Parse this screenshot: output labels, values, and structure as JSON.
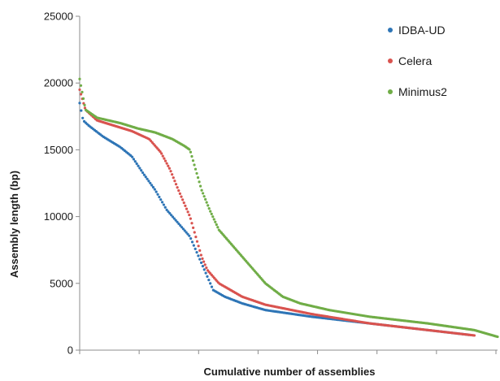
{
  "chart_data": {
    "type": "scatter",
    "title": "",
    "xlabel": "Cumulative number of assemblies",
    "ylabel": "Assembly length (bp)",
    "ylim": [
      0,
      25000
    ],
    "xlim": [
      0,
      360
    ],
    "yticks": [
      "0",
      "5000",
      "10000",
      "15000",
      "20000",
      "25000"
    ],
    "xticks_labeled": false,
    "grid": false,
    "legend_position": "top-right",
    "series": [
      {
        "name": "IDBA-UD",
        "color": "#2e75b6",
        "count": 260,
        "profile": [
          [
            0,
            18500
          ],
          [
            3,
            17200
          ],
          [
            8,
            16800
          ],
          [
            20,
            16000
          ],
          [
            35,
            15200
          ],
          [
            45,
            14500
          ],
          [
            55,
            13200
          ],
          [
            65,
            12000
          ],
          [
            75,
            10500
          ],
          [
            85,
            9500
          ],
          [
            95,
            8500
          ],
          [
            100,
            7500
          ],
          [
            105,
            6500
          ],
          [
            110,
            5500
          ],
          [
            115,
            4500
          ],
          [
            125,
            4000
          ],
          [
            140,
            3500
          ],
          [
            160,
            3000
          ],
          [
            200,
            2500
          ],
          [
            250,
            2000
          ],
          [
            300,
            1500
          ],
          [
            330,
            1200
          ],
          [
            335,
            1150
          ]
        ]
      },
      {
        "name": "Celera",
        "color": "#d9534f",
        "count": 300,
        "profile": [
          [
            0,
            19500
          ],
          [
            5,
            18000
          ],
          [
            15,
            17200
          ],
          [
            30,
            16800
          ],
          [
            45,
            16400
          ],
          [
            60,
            15800
          ],
          [
            70,
            14800
          ],
          [
            78,
            13500
          ],
          [
            85,
            12000
          ],
          [
            90,
            11000
          ],
          [
            95,
            10000
          ],
          [
            100,
            8500
          ],
          [
            105,
            7000
          ],
          [
            110,
            6000
          ],
          [
            120,
            5000
          ],
          [
            140,
            4000
          ],
          [
            160,
            3400
          ],
          [
            200,
            2700
          ],
          [
            250,
            2000
          ],
          [
            300,
            1500
          ],
          [
            340,
            1100
          ]
        ]
      },
      {
        "name": "Minimus2",
        "color": "#70ad47",
        "count": 340,
        "profile": [
          [
            0,
            20300
          ],
          [
            5,
            18000
          ],
          [
            15,
            17400
          ],
          [
            35,
            17000
          ],
          [
            50,
            16600
          ],
          [
            65,
            16300
          ],
          [
            80,
            15800
          ],
          [
            90,
            15300
          ],
          [
            95,
            15000
          ],
          [
            100,
            13500
          ],
          [
            105,
            12000
          ],
          [
            112,
            10500
          ],
          [
            120,
            9000
          ],
          [
            130,
            8000
          ],
          [
            140,
            7000
          ],
          [
            150,
            6000
          ],
          [
            160,
            5000
          ],
          [
            175,
            4000
          ],
          [
            190,
            3500
          ],
          [
            215,
            3000
          ],
          [
            250,
            2500
          ],
          [
            300,
            2000
          ],
          [
            340,
            1500
          ],
          [
            360,
            1000
          ]
        ]
      }
    ]
  }
}
